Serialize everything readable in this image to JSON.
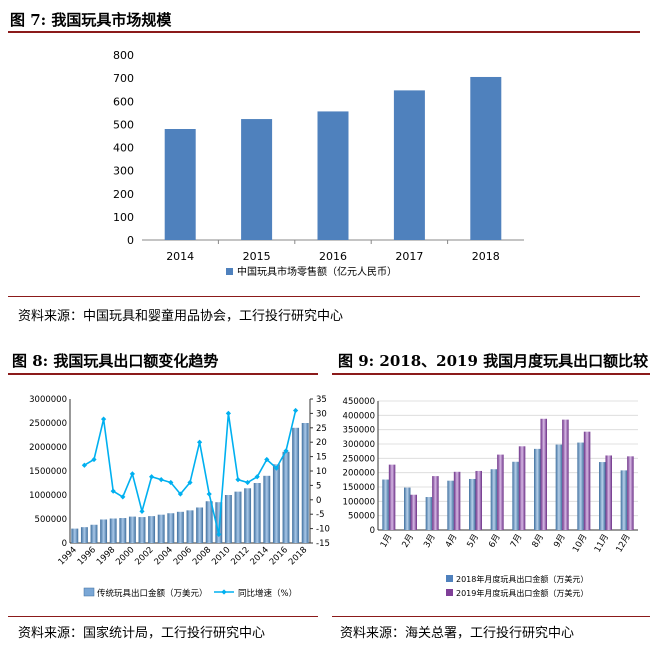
{
  "fig7": {
    "title": "图 7:  我国玩具市场规模",
    "source": "资料来源：中国玩具和婴童用品协会，工行投行研究中心"
  },
  "fig8": {
    "title": "图 8:  我国玩具出口额变化趋势",
    "source": "资料来源：国家统计局，工行投行研究中心"
  },
  "fig9": {
    "title": "图 9:  2018、2019 我国月度玩具出口额比较",
    "source": "资料来源：海关总署，工行投行研究中心"
  },
  "colors": {
    "rule": "#8b1a1a",
    "bar_blue": "#4f81bd",
    "line_cyan": "#00b0f0",
    "purple": "#7f3f98"
  },
  "chart_data": [
    {
      "id": "fig7",
      "type": "bar",
      "categories": [
        "2014",
        "2015",
        "2016",
        "2017",
        "2018"
      ],
      "series": [
        {
          "name": "中国玩具市场零售额（亿元人民币）",
          "values": [
            480,
            523,
            556,
            647,
            705
          ]
        }
      ],
      "ylim": [
        0,
        800
      ],
      "yticks": [
        0,
        100,
        200,
        300,
        400,
        500,
        600,
        700,
        800
      ],
      "legend": "bottom"
    },
    {
      "id": "fig8",
      "type": "bar+line",
      "categories": [
        "1994",
        "1995",
        "1996",
        "1997",
        "1998",
        "1999",
        "2000",
        "2001",
        "2002",
        "2003",
        "2004",
        "2005",
        "2006",
        "2007",
        "2008",
        "2009",
        "2010",
        "2011",
        "2012",
        "2013",
        "2014",
        "2015",
        "2016",
        "2017",
        "2018"
      ],
      "xtick_labels": [
        "1994",
        "1996",
        "1998",
        "2000",
        "2002",
        "2004",
        "2006",
        "2008",
        "2010",
        "2012",
        "2014",
        "2016",
        "2018"
      ],
      "series": [
        {
          "name": "传统玩具出口金额（万美元）",
          "type": "bar",
          "axis": "left",
          "values": [
            300000,
            330000,
            380000,
            490000,
            510000,
            520000,
            550000,
            540000,
            560000,
            590000,
            620000,
            650000,
            680000,
            740000,
            870000,
            850000,
            1000000,
            1070000,
            1140000,
            1250000,
            1400000,
            1640000,
            1900000,
            2400000,
            2500000
          ]
        },
        {
          "name": "同比增速（%）",
          "type": "line",
          "axis": "right",
          "values": [
            null,
            12,
            14,
            28,
            3,
            1,
            9,
            -4,
            8,
            7,
            6,
            2,
            6,
            20,
            2,
            -12,
            30,
            7,
            6,
            8,
            14,
            11,
            17,
            31,
            null
          ]
        }
      ],
      "ylim_left": [
        0,
        3000000
      ],
      "yticks_left": [
        0,
        500000,
        1000000,
        1500000,
        2000000,
        2500000,
        3000000
      ],
      "ylim_right": [
        -15,
        35
      ],
      "yticks_right": [
        -15,
        -10,
        -5,
        0,
        5,
        10,
        15,
        20,
        25,
        30,
        35
      ],
      "legend": "bottom"
    },
    {
      "id": "fig9",
      "type": "bar",
      "categories": [
        "1月",
        "2月",
        "3月",
        "4月",
        "5月",
        "6月",
        "7月",
        "8月",
        "9月",
        "10月",
        "11月",
        "12月"
      ],
      "series": [
        {
          "name": "2018年月度玩具出口金额（万美元）",
          "values": [
            176000,
            148000,
            115000,
            172000,
            178000,
            212000,
            238000,
            283000,
            298000,
            305000,
            237000,
            208000
          ]
        },
        {
          "name": "2019年月度玩具出口金额（万美元）",
          "values": [
            228000,
            123000,
            188000,
            203000,
            206000,
            263000,
            292000,
            388000,
            385000,
            343000,
            260000,
            257000
          ]
        }
      ],
      "ylim": [
        0,
        450000
      ],
      "yticks": [
        0,
        50000,
        100000,
        150000,
        200000,
        250000,
        300000,
        350000,
        400000,
        450000
      ],
      "legend": "bottom"
    }
  ]
}
